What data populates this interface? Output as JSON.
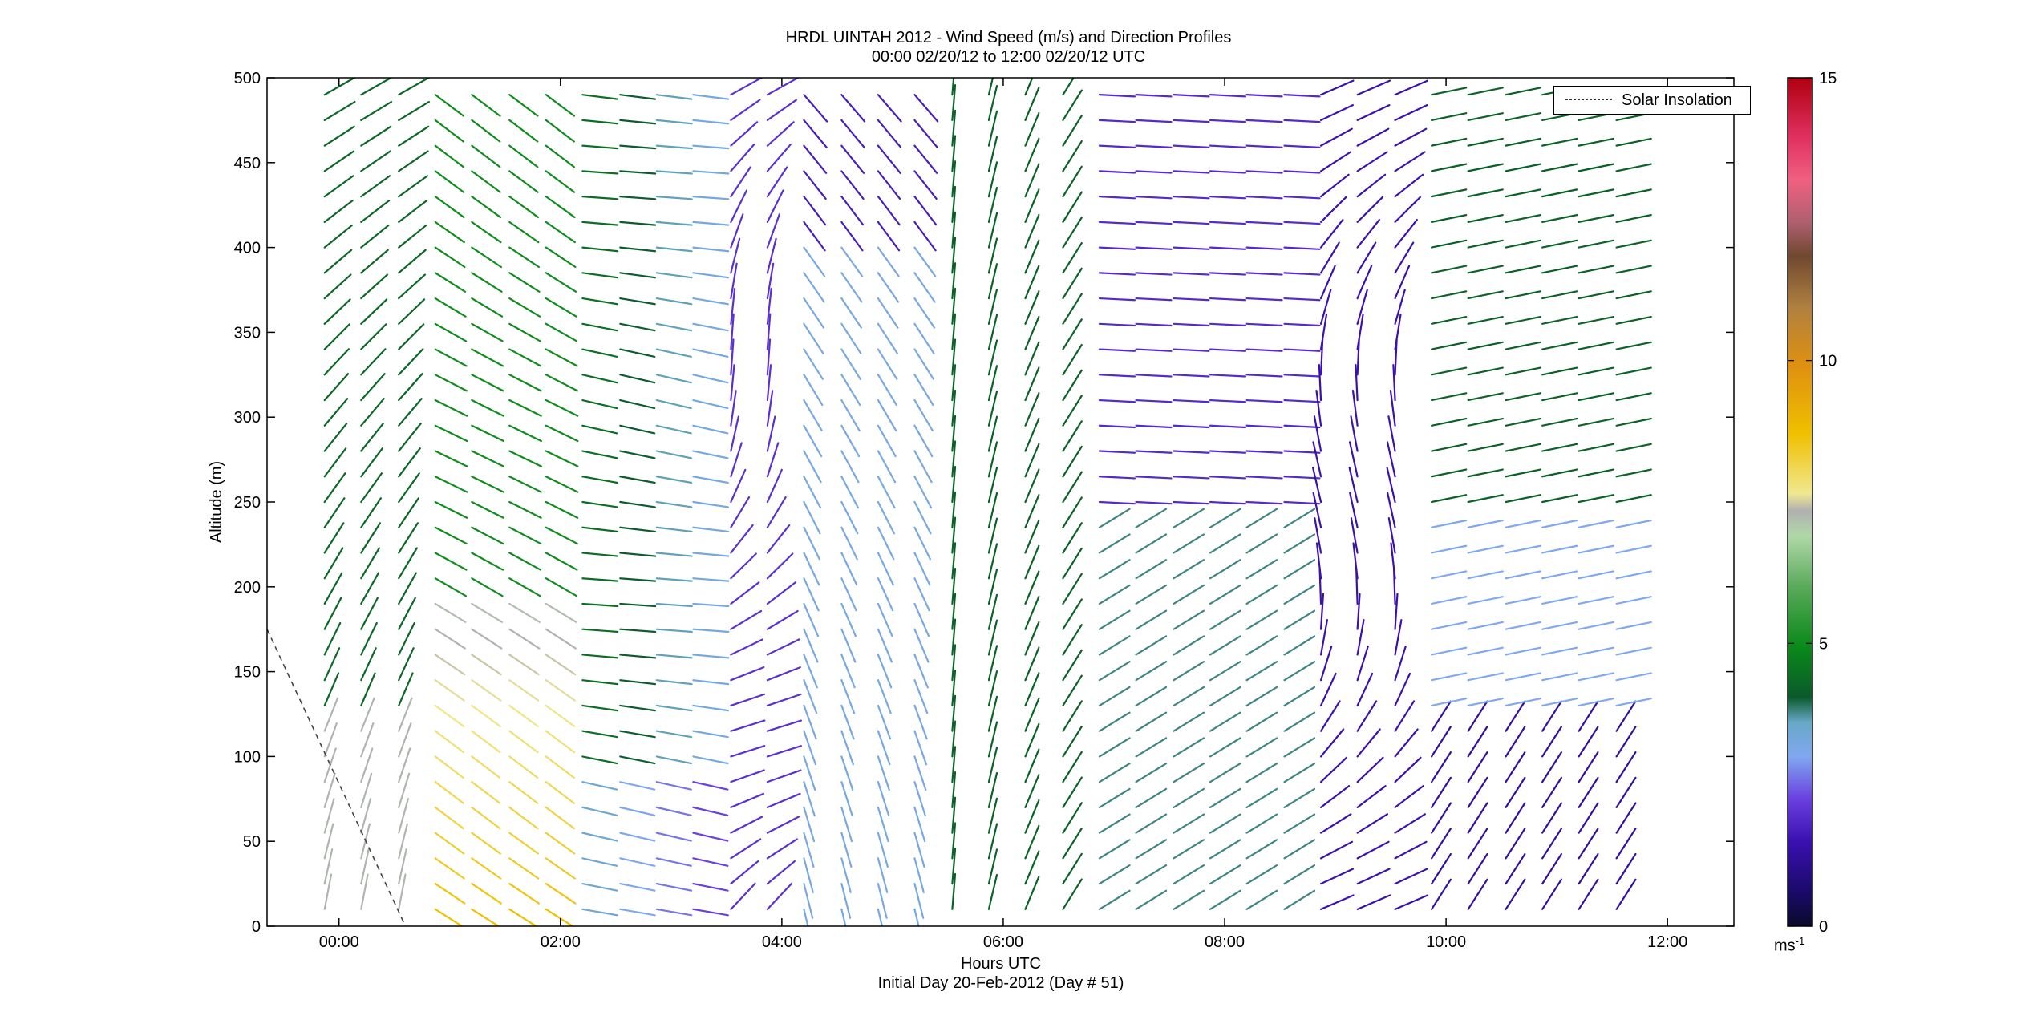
{
  "chart_data": {
    "type": "wind-barb-profile",
    "title": "HRDL UINTAH 2012 - Wind Speed (m/s) and Direction Profiles",
    "subtitle": "00:00 02/20/12 to 12:00 02/20/12  UTC",
    "xlabel": "Hours UTC",
    "xlabel2": "Initial Day 20-Feb-2012 (Day # 51)",
    "ylabel": "Altitude (m)",
    "x_ticks": [
      "00:00",
      "02:00",
      "04:00",
      "06:00",
      "08:00",
      "10:00",
      "12:00"
    ],
    "x_tick_hours": [
      0,
      2,
      4,
      6,
      8,
      10,
      12
    ],
    "xlim_hours": [
      -0.65,
      12.6
    ],
    "ylim": [
      0,
      500
    ],
    "y_ticks": [
      0,
      50,
      100,
      150,
      200,
      250,
      300,
      350,
      400,
      450,
      500
    ],
    "colorbar": {
      "range": [
        0,
        15
      ],
      "ticks": [
        0,
        5,
        10,
        15
      ],
      "unit": "ms",
      "unit_exponent": "-1"
    },
    "legend": {
      "entries": [
        "Solar Insolation"
      ],
      "placement": "top-right"
    },
    "solar_insolation_line": {
      "x_hours": [
        -0.65,
        0.6
      ],
      "y": [
        175,
        0
      ]
    },
    "profile_times_hours": [
      0.0,
      0.33,
      0.67,
      1.0,
      1.33,
      1.67,
      2.0,
      2.33,
      2.67,
      3.0,
      3.33,
      3.67,
      4.0,
      4.33,
      4.67,
      5.0,
      5.33,
      5.67,
      6.0,
      6.33,
      6.67,
      7.0,
      7.33,
      7.67,
      8.0,
      8.33,
      8.67,
      9.0,
      9.33,
      9.67,
      10.0,
      10.33,
      10.67,
      11.0,
      11.33,
      11.67
    ],
    "barb_altitude_step_m": 15,
    "barb_min_altitude_m": 10,
    "barb_max_altitude_m": 495
  }
}
